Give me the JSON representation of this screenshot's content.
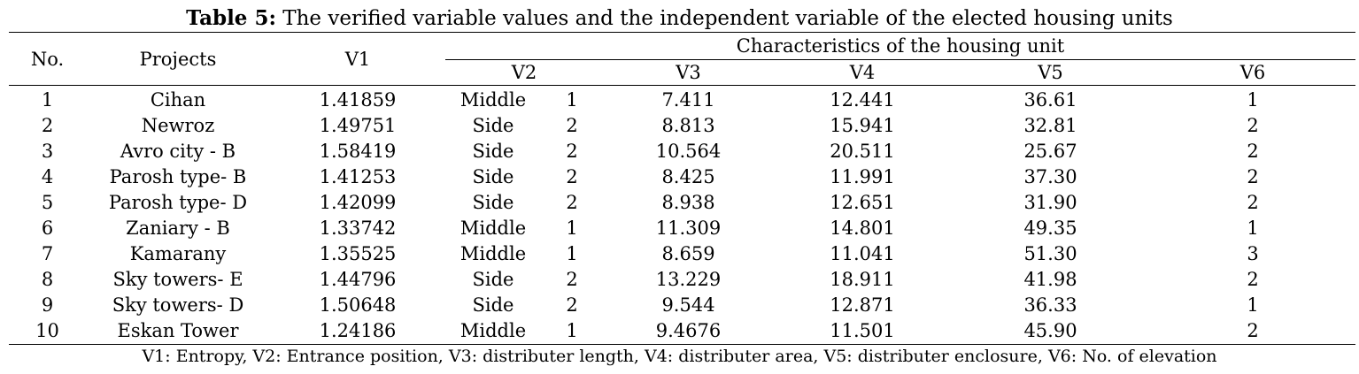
{
  "caption": {
    "label": "Table 5:",
    "text": " The verified variable values and the independent variable of the elected housing units"
  },
  "headers": {
    "no": "No.",
    "projects": "Projects",
    "v1": "V1",
    "group": "Characteristics of the housing unit",
    "v2": "V2",
    "v3": "V3",
    "v4": "V4",
    "v5": "V5",
    "v6": "V6"
  },
  "rows": [
    {
      "no": "1",
      "project": "Cihan",
      "v1": "1.41859",
      "v2_pos": "Middle",
      "v2_code": "1",
      "v3": "7.411",
      "v4": "12.441",
      "v5": "36.61",
      "v6": "1"
    },
    {
      "no": "2",
      "project": "Newroz",
      "v1": "1.49751",
      "v2_pos": "Side",
      "v2_code": "2",
      "v3": "8.813",
      "v4": "15.941",
      "v5": "32.81",
      "v6": "2"
    },
    {
      "no": "3",
      "project": "Avro city - B",
      "v1": "1.58419",
      "v2_pos": "Side",
      "v2_code": "2",
      "v3": "10.564",
      "v4": "20.511",
      "v5": "25.67",
      "v6": "2"
    },
    {
      "no": "4",
      "project": "Parosh type- B",
      "v1": "1.41253",
      "v2_pos": "Side",
      "v2_code": "2",
      "v3": "8.425",
      "v4": "11.991",
      "v5": "37.30",
      "v6": "2"
    },
    {
      "no": "5",
      "project": "Parosh type- D",
      "v1": "1.42099",
      "v2_pos": "Side",
      "v2_code": "2",
      "v3": "8.938",
      "v4": "12.651",
      "v5": "31.90",
      "v6": "2"
    },
    {
      "no": "6",
      "project": "Zaniary - B",
      "v1": "1.33742",
      "v2_pos": "Middle",
      "v2_code": "1",
      "v3": "11.309",
      "v4": "14.801",
      "v5": "49.35",
      "v6": "1"
    },
    {
      "no": "7",
      "project": "Kamarany",
      "v1": "1.35525",
      "v2_pos": "Middle",
      "v2_code": "1",
      "v3": "8.659",
      "v4": "11.041",
      "v5": "51.30",
      "v6": "3"
    },
    {
      "no": "8",
      "project": "Sky towers- E",
      "v1": "1.44796",
      "v2_pos": "Side",
      "v2_code": "2",
      "v3": "13.229",
      "v4": "18.911",
      "v5": "41.98",
      "v6": "2"
    },
    {
      "no": "9",
      "project": "Sky towers- D",
      "v1": "1.50648",
      "v2_pos": "Side",
      "v2_code": "2",
      "v3": "9.544",
      "v4": "12.871",
      "v5": "36.33",
      "v6": "1"
    },
    {
      "no": "10",
      "project": "Eskan Tower",
      "v1": "1.24186",
      "v2_pos": "Middle",
      "v2_code": "1",
      "v3": "9.4676",
      "v4": "11.501",
      "v5": "45.90",
      "v6": "2"
    }
  ],
  "footnote": "V1: Entropy, V2: Entrance position, V3: distributer length, V4: distributer area, V5: distributer enclosure, V6: No. of elevation"
}
